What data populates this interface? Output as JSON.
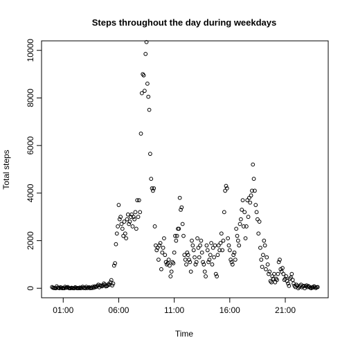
{
  "chart_data": {
    "type": "scatter",
    "title": "Steps throughout the day during weekdays",
    "xlabel": "Time",
    "ylabel": "Total steps",
    "color": "#000000",
    "xlim": [
      -57,
      1492
    ],
    "ylim": [
      -400,
      10400
    ],
    "xticks": [
      {
        "value": 60,
        "label": "01:00"
      },
      {
        "value": 360,
        "label": "06:00"
      },
      {
        "value": 660,
        "label": "11:00"
      },
      {
        "value": 960,
        "label": "16:00"
      },
      {
        "value": 1260,
        "label": "21:00"
      }
    ],
    "yticks": [
      0,
      2000,
      4000,
      6000,
      8000,
      10000
    ],
    "x": [
      0,
      5,
      10,
      15,
      20,
      25,
      30,
      35,
      40,
      45,
      50,
      55,
      60,
      65,
      70,
      75,
      80,
      85,
      90,
      95,
      100,
      105,
      110,
      115,
      120,
      125,
      130,
      135,
      140,
      145,
      150,
      155,
      160,
      165,
      170,
      175,
      180,
      185,
      190,
      195,
      200,
      205,
      210,
      215,
      220,
      225,
      230,
      235,
      240,
      245,
      250,
      255,
      260,
      265,
      270,
      275,
      280,
      285,
      290,
      295,
      300,
      305,
      310,
      315,
      320,
      325,
      330,
      335,
      340,
      345,
      350,
      355,
      360,
      365,
      370,
      375,
      380,
      385,
      390,
      395,
      400,
      405,
      410,
      415,
      420,
      425,
      430,
      435,
      440,
      445,
      450,
      455,
      460,
      465,
      470,
      475,
      480,
      485,
      490,
      495,
      500,
      505,
      510,
      515,
      520,
      525,
      530,
      535,
      540,
      545,
      550,
      555,
      560,
      565,
      570,
      575,
      580,
      585,
      590,
      595,
      600,
      605,
      610,
      615,
      620,
      625,
      630,
      635,
      640,
      645,
      650,
      655,
      660,
      665,
      670,
      675,
      680,
      685,
      690,
      695,
      700,
      705,
      710,
      715,
      720,
      725,
      730,
      735,
      740,
      745,
      750,
      755,
      760,
      765,
      770,
      775,
      780,
      785,
      790,
      795,
      800,
      805,
      810,
      815,
      820,
      825,
      830,
      835,
      840,
      845,
      850,
      855,
      860,
      865,
      870,
      875,
      880,
      885,
      890,
      895,
      900,
      905,
      910,
      915,
      920,
      925,
      930,
      935,
      940,
      945,
      950,
      955,
      960,
      965,
      970,
      975,
      980,
      985,
      990,
      995,
      1000,
      1005,
      1010,
      1015,
      1020,
      1025,
      1030,
      1035,
      1040,
      1045,
      1050,
      1055,
      1060,
      1065,
      1070,
      1075,
      1080,
      1085,
      1090,
      1095,
      1100,
      1105,
      1110,
      1115,
      1120,
      1125,
      1130,
      1135,
      1140,
      1145,
      1150,
      1155,
      1160,
      1165,
      1170,
      1175,
      1180,
      1185,
      1190,
      1195,
      1200,
      1205,
      1210,
      1215,
      1220,
      1225,
      1230,
      1235,
      1240,
      1245,
      1250,
      1255,
      1260,
      1265,
      1270,
      1275,
      1280,
      1285,
      1290,
      1295,
      1300,
      1305,
      1310,
      1315,
      1320,
      1325,
      1330,
      1335,
      1340,
      1345,
      1350,
      1355,
      1360,
      1365,
      1370,
      1375,
      1380,
      1385,
      1390,
      1395,
      1400,
      1405,
      1410,
      1415,
      1420,
      1425,
      1430,
      1435
    ],
    "values": [
      50,
      20,
      10,
      10,
      0,
      80,
      20,
      20,
      0,
      40,
      30,
      0,
      10,
      0,
      60,
      20,
      30,
      50,
      10,
      0,
      0,
      20,
      10,
      0,
      0,
      40,
      20,
      0,
      10,
      0,
      30,
      0,
      20,
      60,
      10,
      30,
      0,
      60,
      10,
      20,
      40,
      0,
      30,
      10,
      60,
      20,
      80,
      50,
      70,
      100,
      150,
      40,
      120,
      100,
      80,
      130,
      200,
      150,
      80,
      90,
      120,
      180,
      150,
      250,
      340,
      120,
      200,
      950,
      1050,
      1850,
      2300,
      2600,
      3500,
      2900,
      3000,
      2700,
      2500,
      2200,
      2800,
      2300,
      2100,
      2900,
      3100,
      2700,
      2800,
      3000,
      3100,
      2600,
      3000,
      2900,
      3200,
      2500,
      3700,
      3000,
      3700,
      3200,
      6500,
      8200,
      9000,
      8950,
      8300,
      9850,
      10350,
      8600,
      8050,
      7500,
      5650,
      4600,
      4200,
      4100,
      4200,
      2600,
      1800,
      1600,
      1700,
      1200,
      1800,
      1900,
      800,
      1500,
      1700,
      2100,
      1400,
      1100,
      1000,
      1050,
      1200,
      950,
      500,
      700,
      1100,
      1050,
      1500,
      2200,
      2000,
      2200,
      2500,
      2500,
      3800,
      3300,
      3400,
      2700,
      2200,
      1400,
      1200,
      1000,
      1500,
      1400,
      1200,
      1100,
      700,
      2000,
      1800,
      1600,
      1300,
      1000,
      1100,
      2100,
      1700,
      1300,
      1800,
      2000,
      1500,
      1100,
      1000,
      700,
      500,
      1800,
      1600,
      1100,
      1200,
      1400,
      1900,
      1000,
      1700,
      1300,
      1800,
      600,
      500,
      1400,
      1800,
      1600,
      1900,
      2300,
      1600,
      2000,
      3200,
      4100,
      4300,
      4200,
      2100,
      1800,
      1600,
      1200,
      1100,
      1000,
      1400,
      1500,
      1200,
      2500,
      2200,
      2000,
      1800,
      2700,
      2900,
      3300,
      3700,
      2600,
      3200,
      2100,
      2600,
      3700,
      3000,
      3800,
      3600,
      3900,
      4100,
      5200,
      4600,
      4100,
      3500,
      3200,
      2900,
      2300,
      2800,
      1700,
      1200,
      900,
      1400,
      2000,
      1800,
      800,
      1300,
      1000,
      600,
      700,
      300,
      250,
      500,
      400,
      600,
      250,
      400,
      350,
      600,
      1100,
      1200,
      800,
      700,
      850,
      600,
      350,
      400,
      500,
      300,
      200,
      100,
      400,
      450,
      600,
      350,
      200,
      100,
      50,
      150,
      100,
      0,
      50,
      100,
      150,
      40,
      80,
      100,
      0,
      80,
      120,
      50,
      90,
      60,
      20,
      0,
      40,
      30,
      80,
      60,
      10,
      40,
      50
    ]
  }
}
